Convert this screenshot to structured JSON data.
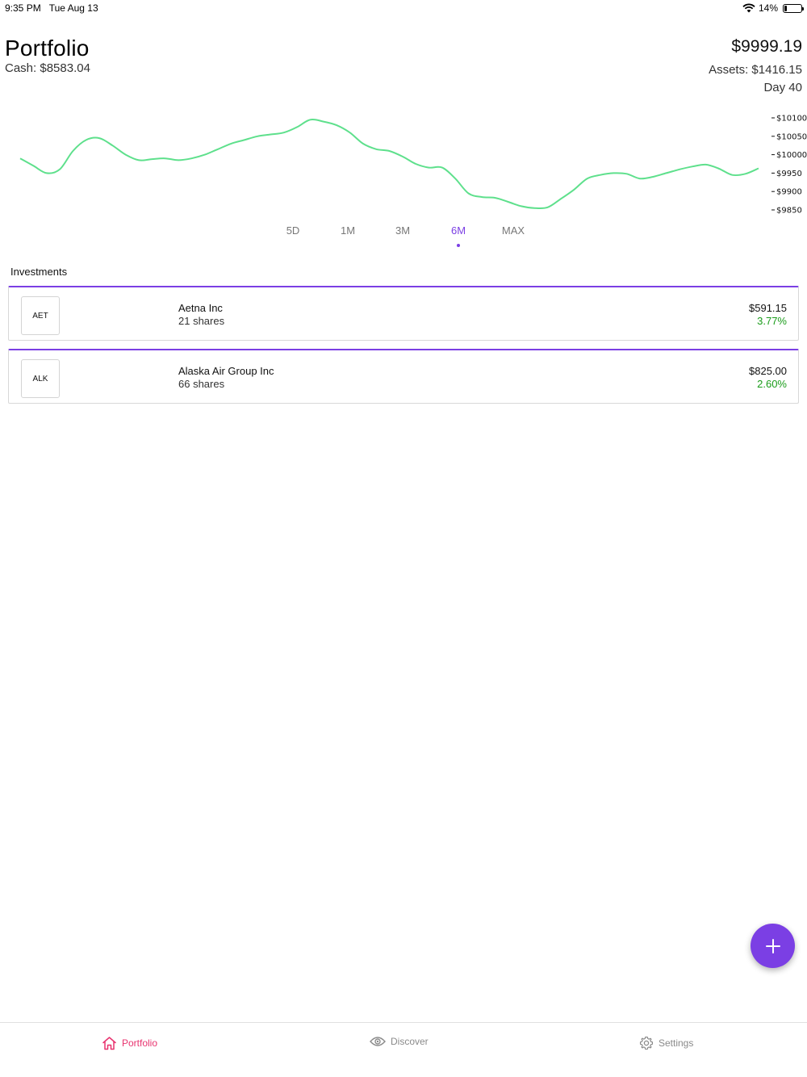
{
  "status_bar": {
    "time": "9:35 PM",
    "date": "Tue Aug 13",
    "battery": "14%",
    "battery_level": 0.14
  },
  "header": {
    "title": "Portfolio",
    "cash": "Cash: $8583.04",
    "total_value": "$9999.19",
    "assets": "Assets: $1416.15",
    "day": "Day 40"
  },
  "chart_data": {
    "type": "line",
    "line_color": "#5ee08c",
    "ylim": [
      9840,
      10110
    ],
    "y_ticks": [
      "$10100",
      "$10050",
      "$10000",
      "$9950",
      "$9900",
      "$9850"
    ],
    "y_tick_values": [
      10100,
      10050,
      10000,
      9950,
      9900,
      9850
    ],
    "grid": false,
    "series": [
      {
        "values": [
          9990,
          9970,
          9950,
          9960,
          10010,
          10040,
          10045,
          10025,
          10000,
          9985,
          9988,
          9990,
          9985,
          9990,
          10000,
          10015,
          10030,
          10040,
          10050,
          10055,
          10060,
          10075,
          10095,
          10090,
          10080,
          10060,
          10030,
          10015,
          10010,
          9995,
          9975,
          9965,
          9965,
          9935,
          9895,
          9885,
          9883,
          9872,
          9860,
          9855,
          9857,
          9880,
          9905,
          9935,
          9945,
          9950,
          9948,
          9935,
          9940,
          9950,
          9960,
          9968,
          9973,
          9962,
          9945,
          9948,
          9963
        ]
      }
    ]
  },
  "ranges": {
    "tabs": [
      "5D",
      "1M",
      "3M",
      "6M",
      "MAX"
    ],
    "active": "6M"
  },
  "investments": {
    "title": "Investments",
    "items": [
      {
        "ticker": "AET",
        "name": "Aetna Inc",
        "shares": "21 shares",
        "value": "$591.15",
        "change": "3.77%"
      },
      {
        "ticker": "ALK",
        "name": "Alaska Air Group Inc",
        "shares": "66 shares",
        "value": "$825.00",
        "change": "2.60%"
      }
    ]
  },
  "accent_color": "#7b3fe4",
  "fab": {
    "icon": "plus-icon"
  },
  "tab_bar": {
    "items": [
      {
        "label": "Portfolio",
        "icon": "home-icon"
      },
      {
        "label": "Discover",
        "icon": "eye-icon"
      },
      {
        "label": "Settings",
        "icon": "gear-icon"
      }
    ],
    "active": "Portfolio"
  }
}
